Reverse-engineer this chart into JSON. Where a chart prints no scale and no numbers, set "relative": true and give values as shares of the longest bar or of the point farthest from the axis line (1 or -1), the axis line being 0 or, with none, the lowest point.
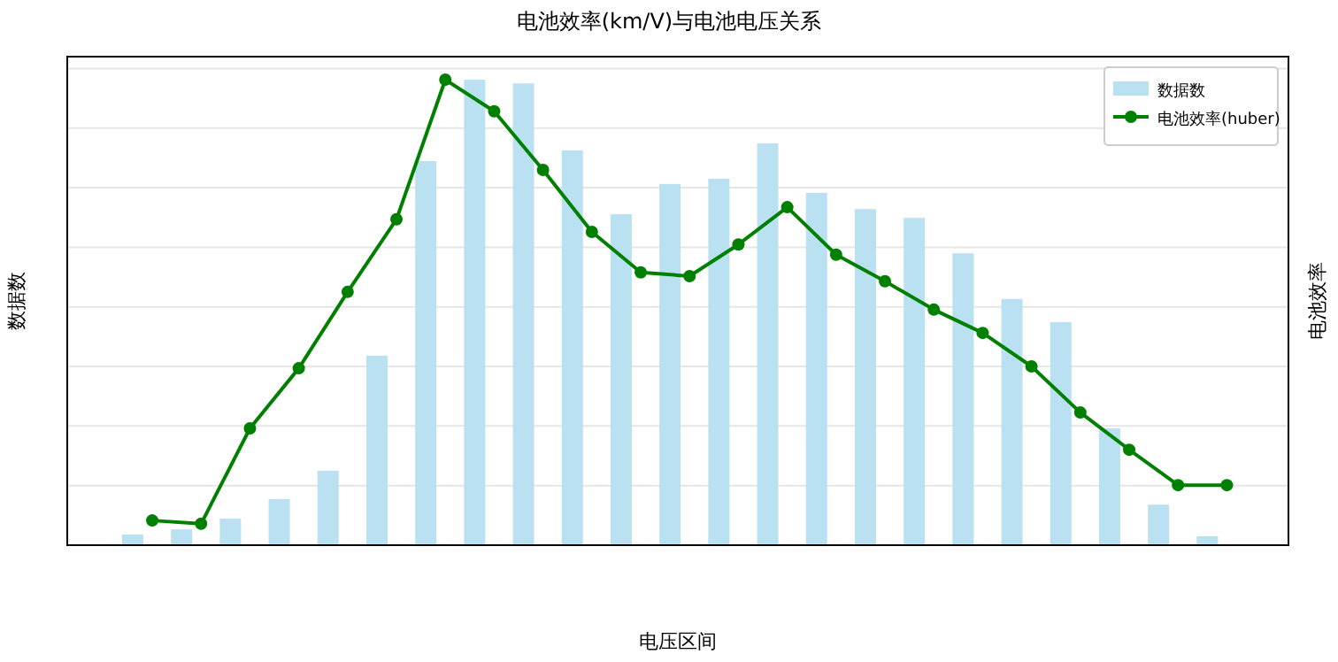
{
  "chart_data": [
    {
      "type": "bar",
      "title": "电池效率(km/V)与电池电压关系",
      "xlabel": "电压区间",
      "ylabel": "数据数",
      "relative": true,
      "grid": "y",
      "legend": "top right",
      "categories": [
        null,
        null,
        null,
        null,
        null,
        null,
        null,
        null,
        null,
        null,
        null,
        null,
        null,
        null,
        null,
        null,
        null,
        null,
        null,
        null,
        null,
        null,
        null
      ],
      "series": [
        {
          "name": "数据数",
          "color": "#b9e1f2",
          "values": [
            0.023,
            0.034,
            0.057,
            0.099,
            0.16,
            0.407,
            0.825,
            1,
            0.992,
            0.848,
            0.711,
            0.776,
            0.787,
            0.863,
            0.757,
            0.722,
            0.703,
            0.627,
            0.529,
            0.479,
            0.251,
            0.087,
            0.019
          ]
        }
      ]
    },
    {
      "type": "line",
      "y2label": "电池效率",
      "relative": true,
      "legend": "top right",
      "marker": "circle",
      "line_style": "solid",
      "categories": [
        null,
        null,
        null,
        null,
        null,
        null,
        null,
        null,
        null,
        null,
        null,
        null,
        null,
        null,
        null,
        null,
        null,
        null,
        null,
        null,
        null,
        null,
        null
      ],
      "series": [
        {
          "name": "电池效率(huber)",
          "color": "#008000",
          "values": [
            0.053,
            0.046,
            0.251,
            0.38,
            0.544,
            0.7,
            1,
            0.932,
            0.806,
            0.673,
            0.586,
            0.578,
            0.646,
            0.726,
            0.624,
            0.567,
            0.506,
            0.456,
            0.384,
            0.285,
            0.205,
            0.129,
            0.129
          ]
        }
      ]
    }
  ]
}
